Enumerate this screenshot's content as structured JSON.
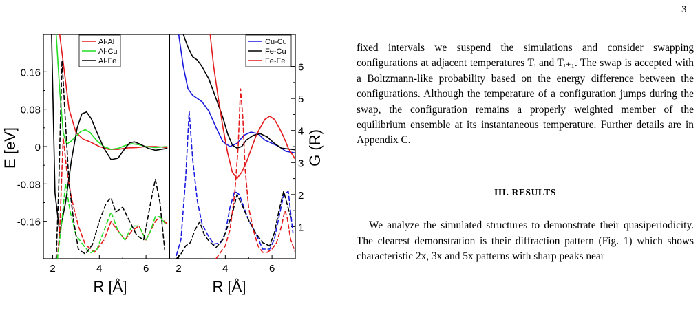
{
  "page_number": "3",
  "figure": {
    "left_panel": {
      "ylabel": "E  [eV]",
      "xlabel": "R  [Å]",
      "y_tick_labels": [
        "0.16",
        "0.08",
        "0",
        "-0.08",
        "-0.16"
      ],
      "x_tick_labels": [
        "2",
        "4",
        "6"
      ],
      "legend": [
        {
          "name": "Al-Al",
          "color": "#e41a1c"
        },
        {
          "name": "Al-Cu",
          "color": "#22dd22"
        },
        {
          "name": "Al-Fe",
          "color": "#000000"
        }
      ]
    },
    "right_panel": {
      "ylabel": "G  (R)",
      "xlabel": "R  [Å]",
      "y_tick_labels": [
        "1",
        "2",
        "3",
        "4",
        "5",
        "6"
      ],
      "x_tick_labels": [
        "2",
        "4",
        "6"
      ],
      "legend": [
        {
          "name": "Cu-Cu",
          "color": "#1a1adf"
        },
        {
          "name": "Fe-Cu",
          "color": "#000000"
        },
        {
          "name": "Fe-Fe",
          "color": "#e41a1c"
        }
      ]
    }
  },
  "chart_data": [
    {
      "type": "line",
      "panel": "left",
      "xlabel": "R  [Å]",
      "ylabel": "E  [eV]",
      "xlim": [
        1.6,
        7.0
      ],
      "ylim": [
        -0.24,
        0.24
      ],
      "grid": false,
      "legend_position": "top-right",
      "series": [
        {
          "name": "Al-Al",
          "color": "#e41a1c",
          "style": "solid",
          "x": [
            2.3,
            2.5,
            2.7,
            3.0,
            3.3,
            3.6,
            4.0,
            4.4,
            4.8,
            5.2,
            5.6,
            6.0,
            6.4,
            6.9
          ],
          "y": [
            0.24,
            0.16,
            0.08,
            0.03,
            0.016,
            0.01,
            0.0,
            -0.006,
            -0.006,
            -0.003,
            -0.002,
            0.0,
            0.0,
            -0.002
          ]
        },
        {
          "name": "Al-Cu",
          "color": "#22dd22",
          "style": "solid",
          "x": [
            2.15,
            2.3,
            2.45,
            2.6,
            2.8,
            3.0,
            3.2,
            3.4,
            3.6,
            3.9,
            4.2,
            4.5,
            4.8,
            5.1,
            5.4,
            5.7,
            6.0,
            6.4,
            6.9
          ],
          "y": [
            0.24,
            0.12,
            0.03,
            0.005,
            0.012,
            0.022,
            0.032,
            0.036,
            0.03,
            0.012,
            0.0,
            -0.006,
            -0.004,
            0.002,
            0.006,
            0.004,
            0.0,
            -0.002,
            0.0
          ]
        },
        {
          "name": "Al-Fe",
          "color": "#000000",
          "style": "solid",
          "x": [
            1.95,
            2.1,
            2.3,
            2.55,
            2.8,
            3.05,
            3.25,
            3.45,
            3.65,
            3.9,
            4.2,
            4.5,
            4.8,
            5.1,
            5.3,
            5.5,
            5.8,
            6.1,
            6.4,
            6.9
          ],
          "y": [
            0.24,
            -0.1,
            -0.185,
            -0.12,
            -0.03,
            0.04,
            0.07,
            0.074,
            0.06,
            0.03,
            -0.004,
            -0.028,
            -0.025,
            -0.004,
            0.008,
            0.01,
            0.004,
            -0.004,
            -0.008,
            -0.004
          ]
        },
        {
          "name": "Al-Al",
          "color": "#e41a1c",
          "style": "dashed",
          "x": [
            2.2,
            2.3,
            2.45,
            2.6,
            2.8,
            3.1,
            3.4,
            3.8,
            4.2,
            4.5,
            4.8,
            5.1,
            5.4,
            5.7,
            6.0,
            6.2,
            6.4,
            6.6,
            6.9
          ],
          "y": [
            -0.24,
            -0.18,
            0.02,
            -0.05,
            -0.11,
            -0.17,
            -0.21,
            -0.226,
            -0.2,
            -0.16,
            -0.18,
            -0.2,
            -0.18,
            -0.17,
            -0.2,
            -0.18,
            -0.16,
            -0.15,
            -0.165
          ]
        },
        {
          "name": "Al-Cu",
          "color": "#22dd22",
          "style": "dashed",
          "x": [
            2.2,
            2.35,
            2.55,
            2.75,
            3.0,
            3.3,
            3.6,
            3.9,
            4.2,
            4.5,
            4.8,
            5.1,
            5.4,
            5.7,
            6.0,
            6.2,
            6.4,
            6.6,
            6.9
          ],
          "y": [
            -0.24,
            -0.18,
            -0.08,
            -0.14,
            -0.19,
            -0.21,
            -0.228,
            -0.22,
            -0.18,
            -0.14,
            -0.18,
            -0.2,
            -0.17,
            -0.17,
            -0.2,
            -0.18,
            -0.15,
            -0.15,
            -0.17
          ]
        },
        {
          "name": "Al-Fe",
          "color": "#000000",
          "style": "dashed",
          "x": [
            2.15,
            2.25,
            2.4,
            2.55,
            2.7,
            2.9,
            3.1,
            3.4,
            3.7,
            4.0,
            4.3,
            4.5,
            4.7,
            5.0,
            5.3,
            5.6,
            5.9,
            6.2,
            6.4,
            6.6,
            6.8
          ],
          "y": [
            -0.24,
            -0.1,
            0.185,
            0.05,
            -0.08,
            -0.16,
            -0.22,
            -0.23,
            -0.21,
            -0.16,
            -0.12,
            -0.11,
            -0.14,
            -0.13,
            -0.16,
            -0.19,
            -0.2,
            -0.12,
            -0.07,
            -0.12,
            -0.22
          ]
        }
      ]
    },
    {
      "type": "line",
      "panel": "right",
      "xlabel": "R  [Å]",
      "ylabel": "G  (R)",
      "xlim": [
        1.6,
        7.0
      ],
      "ylim": [
        0,
        7
      ],
      "grid": false,
      "legend_position": "top-right",
      "series": [
        {
          "name": "Cu-Cu",
          "color": "#1a1adf",
          "style": "solid",
          "x": [
            2.0,
            2.2,
            2.4,
            2.6,
            2.8,
            3.0,
            3.3,
            3.6,
            3.9,
            4.2,
            4.5,
            4.8,
            5.1,
            5.4,
            5.7,
            6.0,
            6.3,
            6.6,
            7.0
          ],
          "y": [
            7.0,
            6.0,
            5.3,
            5.1,
            5.0,
            4.9,
            4.6,
            4.1,
            3.65,
            3.5,
            3.6,
            3.85,
            3.95,
            3.9,
            3.7,
            3.6,
            3.5,
            3.35,
            3.3
          ]
        },
        {
          "name": "Fe-Cu",
          "color": "#000000",
          "style": "solid",
          "x": [
            2.2,
            2.4,
            2.6,
            2.8,
            3.0,
            3.3,
            3.6,
            3.9,
            4.1,
            4.3,
            4.5,
            4.7,
            4.9,
            5.2,
            5.5,
            5.8,
            6.1,
            6.4,
            7.0
          ],
          "y": [
            7.0,
            6.6,
            6.3,
            6.2,
            6.0,
            5.6,
            5.0,
            4.4,
            3.9,
            3.55,
            3.45,
            3.5,
            3.7,
            3.85,
            3.9,
            3.8,
            3.6,
            3.45,
            3.4
          ]
        },
        {
          "name": "Fe-Fe",
          "color": "#e41a1c",
          "style": "solid",
          "x": [
            3.35,
            3.5,
            3.7,
            3.9,
            4.1,
            4.3,
            4.5,
            4.7,
            4.9,
            5.1,
            5.3,
            5.5,
            5.7,
            5.9,
            6.1,
            6.3,
            6.5,
            6.7,
            7.0
          ],
          "y": [
            7.0,
            6.0,
            5.0,
            4.1,
            3.3,
            2.7,
            2.5,
            2.7,
            3.0,
            3.4,
            3.8,
            4.1,
            4.35,
            4.45,
            4.35,
            4.1,
            3.8,
            3.45,
            3.1
          ]
        },
        {
          "name": "Cu-Cu",
          "color": "#1a1adf",
          "style": "dashed",
          "x": [
            1.9,
            2.1,
            2.3,
            2.45,
            2.6,
            2.8,
            3.0,
            3.2,
            3.5,
            3.8,
            4.0,
            4.2,
            4.4,
            4.6,
            4.8,
            5.0,
            5.3,
            5.6,
            5.9,
            6.1,
            6.3,
            6.5,
            6.7,
            6.9
          ],
          "y": [
            0.1,
            0.6,
            2.5,
            4.6,
            3.1,
            1.8,
            1.1,
            0.8,
            0.45,
            0.5,
            0.8,
            1.6,
            2.1,
            2.0,
            1.6,
            1.2,
            0.8,
            0.3,
            0.3,
            0.6,
            1.3,
            2.0,
            2.1,
            0.8
          ]
        },
        {
          "name": "Fe-Cu",
          "color": "#000000",
          "style": "dashed",
          "x": [
            1.9,
            2.1,
            2.3,
            2.5,
            2.7,
            2.9,
            3.1,
            3.3,
            3.6,
            3.9,
            4.1,
            4.3,
            4.5,
            4.7,
            5.0,
            5.3,
            5.6,
            5.9,
            6.1,
            6.3,
            6.5,
            6.8
          ],
          "y": [
            0.0,
            0.15,
            0.4,
            0.5,
            0.9,
            1.15,
            0.75,
            0.55,
            0.35,
            0.6,
            1.0,
            1.4,
            2.0,
            1.7,
            1.2,
            0.8,
            0.5,
            0.4,
            0.8,
            1.5,
            2.1,
            1.3
          ]
        },
        {
          "name": "Fe-Fe",
          "color": "#e41a1c",
          "style": "dashed",
          "x": [
            3.6,
            3.8,
            4.0,
            4.2,
            4.4,
            4.55,
            4.65,
            4.75,
            4.85,
            5.0,
            5.2,
            5.4,
            5.6,
            5.8,
            6.0,
            6.2,
            6.4,
            6.55,
            6.65,
            6.8,
            7.0
          ],
          "y": [
            0.0,
            0.2,
            0.4,
            0.9,
            2.0,
            3.5,
            5.3,
            4.4,
            2.8,
            1.6,
            0.9,
            0.4,
            0.2,
            0.2,
            0.3,
            0.5,
            1.0,
            1.5,
            1.3,
            0.6,
            0.2
          ]
        }
      ]
    }
  ],
  "text": {
    "para1": "fixed intervals we suspend the simulations and consider swapping configurations at adjacent temperatures Tᵢ and Tᵢ₊₁. The swap is accepted with a Boltzmann-like probability based on the energy difference between the configurations. Although the temperature of a configuration jumps during the swap, the configuration remains a properly weighted member of the equilibrium ensemble at its instantaneous temperature. Further details are in Appendix C.",
    "heading": "III.    RESULTS",
    "para2": "We analyze the simulated structures to demonstrate their quasiperiodicity. The clearest demonstration is their diffraction pattern (Fig. 1) which shows characteristic 2x, 3x and 5x patterns with sharp peaks near"
  }
}
